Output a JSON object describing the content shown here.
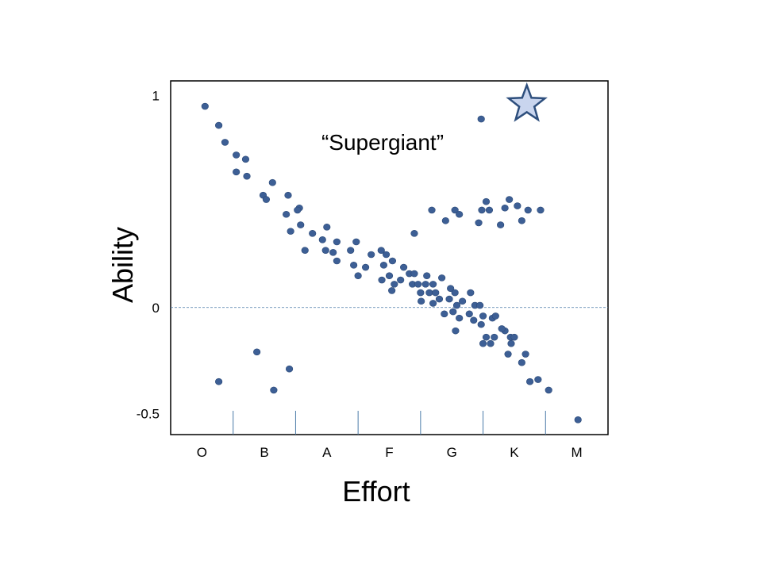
{
  "chart_data": {
    "type": "scatter",
    "title": "",
    "xlabel": "Effort",
    "ylabel": "Ability",
    "annotation": "“Supergiant”",
    "y_ticks": [
      {
        "label": "1",
        "value": 1
      },
      {
        "label": "0",
        "value": 0
      },
      {
        "label": "-0.5",
        "value": -0.5
      }
    ],
    "ylim": [
      -0.6,
      1.07
    ],
    "xlim": [
      0,
      7
    ],
    "x_categories": [
      "O",
      "B",
      "A",
      "F",
      "G",
      "K",
      "M"
    ],
    "x_category_positions": [
      0.5,
      1.5,
      2.5,
      3.5,
      4.5,
      5.5,
      6.5
    ],
    "x_separators": [
      1,
      2,
      3,
      4,
      5,
      6
    ],
    "zero_line": true,
    "point_color": "#3d5f95",
    "star_color": "#c9d5ee",
    "star_stroke": "#2e4f7d",
    "star_point": {
      "x": 5.7,
      "y": 0.96
    },
    "points": [
      {
        "x": 0.55,
        "y": 0.95
      },
      {
        "x": 0.77,
        "y": 0.86
      },
      {
        "x": 0.87,
        "y": 0.78
      },
      {
        "x": 1.05,
        "y": 0.72
      },
      {
        "x": 1.2,
        "y": 0.7
      },
      {
        "x": 1.05,
        "y": 0.64
      },
      {
        "x": 1.22,
        "y": 0.62
      },
      {
        "x": 1.48,
        "y": 0.53
      },
      {
        "x": 1.53,
        "y": 0.51
      },
      {
        "x": 1.63,
        "y": 0.59
      },
      {
        "x": 1.88,
        "y": 0.53
      },
      {
        "x": 2.06,
        "y": 0.47
      },
      {
        "x": 1.85,
        "y": 0.44
      },
      {
        "x": 2.03,
        "y": 0.46
      },
      {
        "x": 1.92,
        "y": 0.36
      },
      {
        "x": 2.08,
        "y": 0.39
      },
      {
        "x": 2.27,
        "y": 0.35
      },
      {
        "x": 2.15,
        "y": 0.27
      },
      {
        "x": 2.43,
        "y": 0.32
      },
      {
        "x": 2.5,
        "y": 0.38
      },
      {
        "x": 2.48,
        "y": 0.27
      },
      {
        "x": 2.6,
        "y": 0.26
      },
      {
        "x": 2.66,
        "y": 0.22
      },
      {
        "x": 2.88,
        "y": 0.27
      },
      {
        "x": 2.66,
        "y": 0.31
      },
      {
        "x": 2.97,
        "y": 0.31
      },
      {
        "x": 2.93,
        "y": 0.2
      },
      {
        "x": 3.0,
        "y": 0.15
      },
      {
        "x": 3.12,
        "y": 0.19
      },
      {
        "x": 3.21,
        "y": 0.25
      },
      {
        "x": 3.37,
        "y": 0.27
      },
      {
        "x": 3.45,
        "y": 0.25
      },
      {
        "x": 3.41,
        "y": 0.2
      },
      {
        "x": 3.55,
        "y": 0.22
      },
      {
        "x": 3.73,
        "y": 0.19
      },
      {
        "x": 3.5,
        "y": 0.15
      },
      {
        "x": 3.58,
        "y": 0.11
      },
      {
        "x": 3.38,
        "y": 0.13
      },
      {
        "x": 3.68,
        "y": 0.13
      },
      {
        "x": 3.54,
        "y": 0.08
      },
      {
        "x": 3.82,
        "y": 0.16
      },
      {
        "x": 3.9,
        "y": 0.16
      },
      {
        "x": 3.87,
        "y": 0.11
      },
      {
        "x": 4.0,
        "y": 0.07
      },
      {
        "x": 3.96,
        "y": 0.11
      },
      {
        "x": 4.01,
        "y": 0.03
      },
      {
        "x": 4.1,
        "y": 0.15
      },
      {
        "x": 4.14,
        "y": 0.07
      },
      {
        "x": 4.2,
        "y": 0.11
      },
      {
        "x": 4.08,
        "y": 0.11
      },
      {
        "x": 4.24,
        "y": 0.07
      },
      {
        "x": 4.2,
        "y": 0.02
      },
      {
        "x": 4.3,
        "y": 0.04
      },
      {
        "x": 4.34,
        "y": 0.14
      },
      {
        "x": 4.38,
        "y": -0.03
      },
      {
        "x": 4.46,
        "y": 0.04
      },
      {
        "x": 4.48,
        "y": 0.09
      },
      {
        "x": 4.52,
        "y": -0.02
      },
      {
        "x": 4.55,
        "y": 0.07
      },
      {
        "x": 4.58,
        "y": 0.01
      },
      {
        "x": 4.62,
        "y": -0.05
      },
      {
        "x": 4.67,
        "y": 0.03
      },
      {
        "x": 4.56,
        "y": -0.11
      },
      {
        "x": 4.8,
        "y": 0.07
      },
      {
        "x": 4.87,
        "y": 0.01
      },
      {
        "x": 4.85,
        "y": -0.06
      },
      {
        "x": 4.78,
        "y": -0.03
      },
      {
        "x": 4.95,
        "y": 0.01
      },
      {
        "x": 5.0,
        "y": -0.04
      },
      {
        "x": 4.97,
        "y": -0.08
      },
      {
        "x": 5.0,
        "y": -0.17
      },
      {
        "x": 5.05,
        "y": -0.14
      },
      {
        "x": 5.12,
        "y": -0.17
      },
      {
        "x": 5.18,
        "y": -0.14
      },
      {
        "x": 5.15,
        "y": -0.05
      },
      {
        "x": 5.2,
        "y": -0.04
      },
      {
        "x": 5.35,
        "y": -0.11
      },
      {
        "x": 5.4,
        "y": -0.22
      },
      {
        "x": 5.45,
        "y": -0.17
      },
      {
        "x": 5.44,
        "y": -0.14
      },
      {
        "x": 5.5,
        "y": -0.14
      },
      {
        "x": 5.3,
        "y": -0.1
      },
      {
        "x": 5.62,
        "y": -0.26
      },
      {
        "x": 5.68,
        "y": -0.22
      },
      {
        "x": 5.75,
        "y": -0.35
      },
      {
        "x": 5.88,
        "y": -0.34
      },
      {
        "x": 6.05,
        "y": -0.39
      },
      {
        "x": 6.52,
        "y": -0.53
      },
      {
        "x": 0.77,
        "y": -0.35
      },
      {
        "x": 1.38,
        "y": -0.21
      },
      {
        "x": 1.65,
        "y": -0.39
      },
      {
        "x": 1.9,
        "y": -0.29
      },
      {
        "x": 3.9,
        "y": 0.35
      },
      {
        "x": 4.18,
        "y": 0.46
      },
      {
        "x": 4.4,
        "y": 0.41
      },
      {
        "x": 4.55,
        "y": 0.46
      },
      {
        "x": 4.62,
        "y": 0.44
      },
      {
        "x": 4.93,
        "y": 0.4
      },
      {
        "x": 4.98,
        "y": 0.46
      },
      {
        "x": 5.05,
        "y": 0.5
      },
      {
        "x": 5.1,
        "y": 0.46
      },
      {
        "x": 5.28,
        "y": 0.39
      },
      {
        "x": 5.35,
        "y": 0.47
      },
      {
        "x": 5.42,
        "y": 0.51
      },
      {
        "x": 5.55,
        "y": 0.48
      },
      {
        "x": 5.62,
        "y": 0.41
      },
      {
        "x": 5.72,
        "y": 0.46
      },
      {
        "x": 5.92,
        "y": 0.46
      },
      {
        "x": 4.97,
        "y": 0.89
      }
    ]
  }
}
